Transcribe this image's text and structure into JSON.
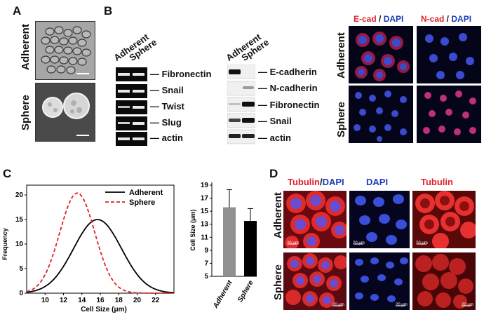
{
  "panels": {
    "A": {
      "letter": "A",
      "rows": [
        "Adherent",
        "Sphere"
      ]
    },
    "B": {
      "letter": "B",
      "pcr_lanes": [
        "Adherent",
        "Sphere"
      ],
      "pcr_bands": [
        "Fibronectin",
        "Snail",
        "Twist",
        "Slug",
        "actin"
      ],
      "wb_lanes": [
        "Adherent",
        "Sphere"
      ],
      "wb_bands": [
        "E-cadherin",
        "N-cadherin",
        "Fibronectin",
        "Snail",
        "actin"
      ],
      "if_col1_a": "E-cad",
      "if_col1_sep": " / ",
      "if_col1_b": "DAPI",
      "if_col2_a": "N-cad",
      "if_col2_sep": " / ",
      "if_col2_b": "DAPI",
      "if_rows": [
        "Adherent",
        "Sphere"
      ]
    },
    "C": {
      "letter": "C"
    },
    "D": {
      "letter": "D",
      "col1_a": "Tubulin",
      "col1_sep": "/",
      "col1_b": "DAPI",
      "col2": "DAPI",
      "col3": "Tubulin",
      "rows": [
        "Adherent",
        "Sphere"
      ],
      "scale_bar": "20 μm"
    }
  },
  "colors": {
    "adherent_line": "#000000",
    "sphere_line": "#e02020",
    "adherent_bar": "#909090",
    "sphere_bar": "#000000",
    "ecad_red": "#e0202a",
    "dapi_blue": "#1a3bb8"
  },
  "chart_data": [
    {
      "type": "line",
      "xlabel": "Cell Size (μm)",
      "ylabel": "Frequency",
      "xlim": [
        8,
        24
      ],
      "ylim": [
        0,
        22
      ],
      "xticks": [
        10,
        12,
        14,
        16,
        18,
        20,
        22
      ],
      "yticks": [
        0,
        5,
        10,
        15,
        20
      ],
      "legend": "top-right",
      "series": [
        {
          "name": "Adherent",
          "style": "solid",
          "mean": 15.7,
          "sd": 2.6,
          "peak": 15.0,
          "x": [
            8,
            9,
            10,
            11,
            12,
            13,
            14,
            15,
            15.7,
            16,
            17,
            18,
            19,
            20,
            21,
            22,
            23,
            24
          ],
          "y": [
            0.2,
            0.6,
            1.3,
            2.6,
            4.4,
            6.9,
            9.7,
            12.8,
            15.0,
            14.9,
            13.3,
            10.8,
            7.8,
            5.1,
            2.9,
            1.5,
            0.7,
            0.3
          ]
        },
        {
          "name": "Sphere",
          "style": "dashed",
          "mean": 13.5,
          "sd": 1.9,
          "peak": 20.4,
          "x": [
            8,
            9,
            10,
            11,
            12,
            13,
            13.5,
            14,
            15,
            16,
            17,
            18,
            19,
            20,
            21
          ],
          "y": [
            0.4,
            1.3,
            3.7,
            8.0,
            14.0,
            19.5,
            20.4,
            19.8,
            14.8,
            8.8,
            4.1,
            1.5,
            0.4,
            0.1,
            0.0
          ]
        }
      ]
    },
    {
      "type": "bar",
      "ylabel": "Cell Size (μm)",
      "ylim": [
        5,
        19
      ],
      "yticks": [
        5,
        7,
        9,
        11,
        13,
        15,
        17,
        19
      ],
      "categories": [
        "Adherent",
        "Sphere"
      ],
      "values": [
        15.6,
        13.5
      ],
      "errors": [
        2.7,
        1.9
      ]
    }
  ]
}
